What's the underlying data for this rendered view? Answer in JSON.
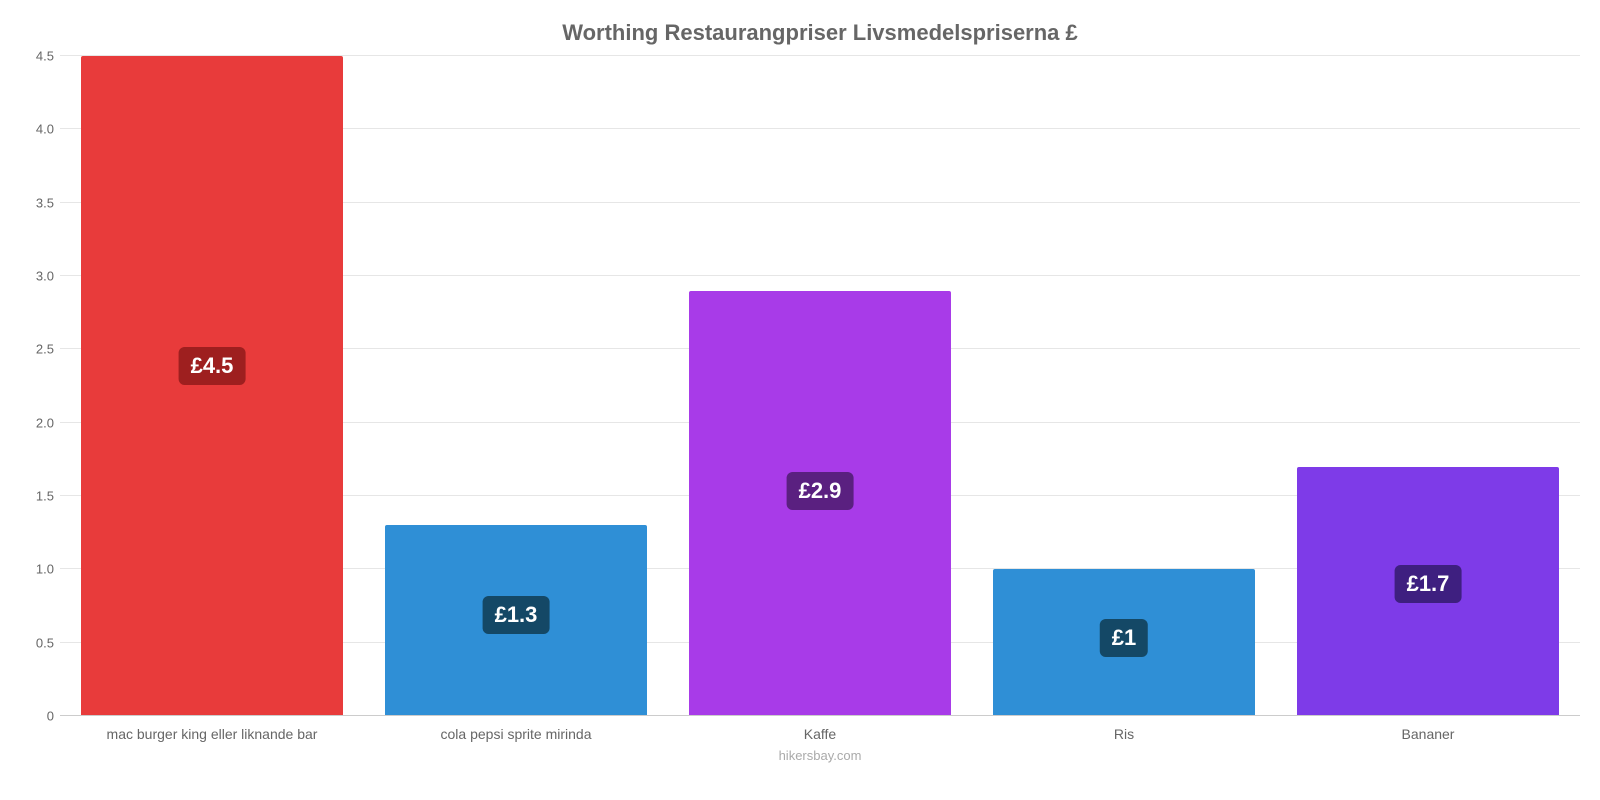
{
  "chart": {
    "type": "bar",
    "title": "Worthing Restaurangpriser Livsmedelspriserna £",
    "title_fontsize": 22,
    "title_color": "#666666",
    "background_color": "#ffffff",
    "grid_color": "#e6e6e6",
    "axis_text_color": "#666666",
    "label_fontsize": 14,
    "value_fontsize": 22,
    "ylim": [
      0,
      4.5
    ],
    "ytick_step": 0.5,
    "yticks": [
      "0",
      "0.5",
      "1.0",
      "1.5",
      "2.0",
      "2.5",
      "3.0",
      "3.5",
      "4.0",
      "4.5"
    ],
    "bar_width": 0.86,
    "categories": [
      "mac burger king eller liknande bar",
      "cola pepsi sprite mirinda",
      "Kaffe",
      "Ris",
      "Bananer"
    ],
    "values": [
      4.5,
      1.3,
      2.9,
      1.0,
      1.7
    ],
    "value_labels": [
      "£4.5",
      "£1.3",
      "£2.9",
      "£1",
      "£1.7"
    ],
    "bar_colors": [
      "#e83b3b",
      "#2f8fd6",
      "#a83be8",
      "#2f8fd6",
      "#7e3be8"
    ],
    "badge_colors": [
      "#9e1f1f",
      "#144866",
      "#5a2080",
      "#144866",
      "#3e1f80"
    ],
    "attribution": "hikersbay.com"
  }
}
